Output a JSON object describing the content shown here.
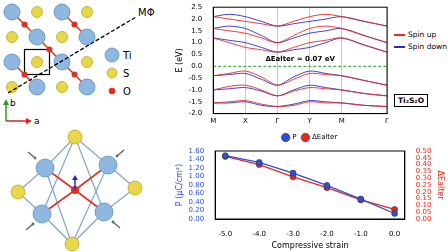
{
  "diagrams": {
    "lattice": {
      "atom_labels": [
        "Ti",
        "S",
        "O"
      ],
      "path_label": "MΦ",
      "axis_labels": [
        "a",
        "b"
      ]
    }
  },
  "chart_data": [
    {
      "type": "line",
      "x": [
        0,
        0.5,
        1,
        1.5,
        2,
        2.5,
        3,
        3.5,
        4,
        4.7,
        5.41
      ],
      "series": [
        {
          "name": "Spin up",
          "color": "#e8281e",
          "values": [
            1.2,
            1.0,
            0.8,
            0.7,
            0.6,
            0.8,
            1.0,
            1.1,
            1.2,
            0.9,
            0.6
          ]
        },
        {
          "name": "Spin down",
          "color": "#2a2ad0",
          "values": [
            1.2,
            1.1,
            1.0,
            0.8,
            0.6,
            0.7,
            0.8,
            1.0,
            1.2,
            0.9,
            0.6
          ]
        },
        {
          "name": "Spin up",
          "color": "#e8281e",
          "values": [
            1.6,
            1.5,
            1.4,
            1.2,
            1.0,
            1.3,
            1.6,
            1.7,
            1.6,
            1.3,
            1.0
          ]
        },
        {
          "name": "Spin down",
          "color": "#2a2ad0",
          "values": [
            1.6,
            1.7,
            1.6,
            1.3,
            1.0,
            1.2,
            1.4,
            1.5,
            1.6,
            1.3,
            1.0
          ]
        },
        {
          "name": "Spin up",
          "color": "#e8281e",
          "values": [
            2.1,
            2.0,
            1.9,
            1.8,
            1.7,
            1.9,
            2.1,
            2.2,
            2.1,
            1.9,
            1.7
          ]
        },
        {
          "name": "Spin down",
          "color": "#2a2ad0",
          "values": [
            2.1,
            2.2,
            2.1,
            1.9,
            1.7,
            1.8,
            1.9,
            2.0,
            2.1,
            1.9,
            1.7
          ]
        },
        {
          "name": "Spin up",
          "color": "#e8281e",
          "values": [
            -0.4,
            -0.3,
            -0.2,
            -0.45,
            -0.8,
            -0.55,
            -0.3,
            -0.35,
            -0.4,
            -0.6,
            -0.8
          ]
        },
        {
          "name": "Spin down",
          "color": "#2a2ad0",
          "values": [
            -0.4,
            -0.35,
            -0.3,
            -0.55,
            -0.8,
            -0.45,
            -0.2,
            -0.3,
            -0.4,
            -0.6,
            -0.8
          ]
        },
        {
          "name": "Spin up",
          "color": "#e8281e",
          "values": [
            -1.0,
            -0.85,
            -0.8,
            -1.0,
            -1.25,
            -1.05,
            -0.9,
            -0.95,
            -1.0,
            -1.15,
            -1.25
          ]
        },
        {
          "name": "Spin down",
          "color": "#2a2ad0",
          "values": [
            -1.0,
            -0.95,
            -0.9,
            -1.05,
            -1.25,
            -1.0,
            -0.8,
            -0.9,
            -1.0,
            -1.15,
            -1.25
          ]
        },
        {
          "name": "Spin up",
          "color": "#e8281e",
          "values": [
            -1.55,
            -1.5,
            -1.45,
            -1.6,
            -1.7,
            -1.65,
            -1.5,
            -1.55,
            -1.55,
            -1.65,
            -1.7
          ]
        },
        {
          "name": "Spin down",
          "color": "#2a2ad0",
          "values": [
            -1.55,
            -1.55,
            -1.5,
            -1.65,
            -1.7,
            -1.6,
            -1.45,
            -1.5,
            -1.55,
            -1.65,
            -1.7
          ]
        }
      ],
      "ylabel": "E (eV)",
      "xlim": [
        0,
        5.41
      ],
      "xticks": [
        {
          "value": 0,
          "label": "M"
        },
        {
          "value": 1,
          "label": "X"
        },
        {
          "value": 2,
          "label": "Γ"
        },
        {
          "value": 3,
          "label": "Y"
        },
        {
          "value": 4,
          "label": "M"
        },
        {
          "value": 5.41,
          "label": "Γ"
        }
      ],
      "ylim": [
        -2,
        2.5
      ],
      "yticks": [
        {
          "value": -2,
          "label": "-2.0"
        },
        {
          "value": -1.5,
          "label": "-1.5"
        },
        {
          "value": -1,
          "label": "-1.0"
        },
        {
          "value": -0.5,
          "label": "-0.5"
        },
        {
          "value": 0,
          "label": "0.0"
        },
        {
          "value": 0.5,
          "label": "0.5"
        },
        {
          "value": 1,
          "label": "1.0"
        },
        {
          "value": 1.5,
          "label": "1.5"
        },
        {
          "value": 2,
          "label": "2.0"
        },
        {
          "value": 2.5,
          "label": "2.5"
        }
      ],
      "grid": "x",
      "legend": "right",
      "reference_line": 0,
      "annotations": [
        "ΔEalter = 0.07 eV",
        "Ti₂S₂O"
      ]
    },
    {
      "type": "line",
      "x": [
        -5,
        -4,
        -3,
        -2,
        -1,
        0
      ],
      "series": [
        {
          "name": "P",
          "color": "#2b4fe0",
          "marker": "circle",
          "values": [
            1.49,
            1.33,
            1.08,
            0.79,
            0.47,
            0.13
          ]
        },
        {
          "name": "ΔEalter",
          "color": "#e8281e",
          "marker": "circle",
          "axis": "y2",
          "values": [
            0.46,
            0.4,
            0.31,
            0.23,
            0.14,
            0.07
          ]
        }
      ],
      "xlabel": "Compressive strain",
      "ylabel": "P (μC/cm²)",
      "y2label": "ΔEalter",
      "xlim": [
        -5.3,
        0.3
      ],
      "xticks": [
        {
          "value": -5,
          "label": "-5.0"
        },
        {
          "value": -4,
          "label": "-4.0"
        },
        {
          "value": -3,
          "label": "-3.0"
        },
        {
          "value": -2,
          "label": "-2.0"
        },
        {
          "value": -1,
          "label": "-1.0"
        },
        {
          "value": 0,
          "label": "0.0"
        }
      ],
      "ylim": [
        0,
        1.6
      ],
      "yticks": [
        {
          "value": 0,
          "label": "0.00"
        },
        {
          "value": 0.2,
          "label": "0.20"
        },
        {
          "value": 0.4,
          "label": "0.40"
        },
        {
          "value": 0.6,
          "label": "0.60"
        },
        {
          "value": 0.8,
          "label": "0.80"
        },
        {
          "value": 1,
          "label": "1.00"
        },
        {
          "value": 1.2,
          "label": "1.20"
        },
        {
          "value": 1.4,
          "label": "1.40"
        },
        {
          "value": 1.6,
          "label": "1.60"
        }
      ],
      "y2lim": [
        0,
        0.5
      ],
      "y2ticks": [
        {
          "value": 0,
          "label": "0.00"
        },
        {
          "value": 0.05,
          "label": "0.05"
        },
        {
          "value": 0.1,
          "label": "0.10"
        },
        {
          "value": 0.15,
          "label": "0.15"
        },
        {
          "value": 0.2,
          "label": "0.20"
        },
        {
          "value": 0.25,
          "label": "0.25"
        },
        {
          "value": 0.3,
          "label": "0.30"
        },
        {
          "value": 0.35,
          "label": "0.35"
        },
        {
          "value": 0.4,
          "label": "0.40"
        },
        {
          "value": 0.45,
          "label": "0.45"
        },
        {
          "value": 0.5,
          "label": "0.50"
        }
      ],
      "legend": "top",
      "grid": false
    }
  ]
}
